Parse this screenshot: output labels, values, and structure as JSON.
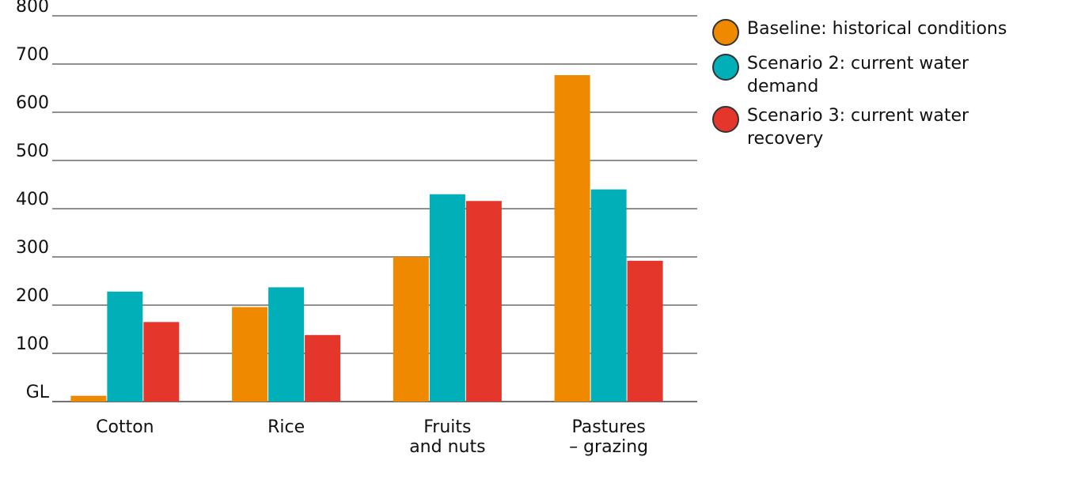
{
  "chart_data": {
    "type": "bar",
    "categories": [
      "Cotton",
      "Rice",
      "Fruits\nand nuts",
      "Pastures\n– grazing"
    ],
    "series": [
      {
        "name": "Baseline: historical conditions",
        "color": "#ef8a00",
        "values": [
          12,
          196,
          300,
          677
        ]
      },
      {
        "name": "Scenario 2: current water demand",
        "color": "#00afb8",
        "values": [
          228,
          237,
          430,
          440
        ]
      },
      {
        "name": "Scenario 3: current water recovery",
        "color": "#e5362b",
        "values": [
          165,
          138,
          416,
          292
        ]
      }
    ],
    "yticks": [
      "GL",
      "100",
      "200",
      "300",
      "400",
      "500",
      "600",
      "700",
      "800"
    ],
    "ylim": [
      0,
      800
    ],
    "grid": true,
    "legend_position": "top-right"
  }
}
